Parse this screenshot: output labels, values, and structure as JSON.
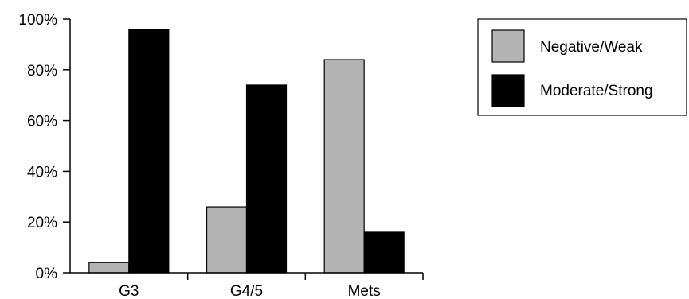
{
  "chart_data": {
    "type": "bar",
    "categories": [
      "G3",
      "G4/5",
      "Mets"
    ],
    "series": [
      {
        "name": "Negative/Weak",
        "values": [
          4,
          26,
          84
        ],
        "color": "#b3b3b3"
      },
      {
        "name": "Moderate/Strong",
        "values": [
          96,
          74,
          16
        ],
        "color": "#000000"
      }
    ],
    "y_ticks": [
      0,
      20,
      40,
      60,
      80,
      100
    ],
    "y_tick_labels": [
      "0%",
      "20%",
      "40%",
      "60%",
      "80%",
      "100%"
    ],
    "ylim": [
      0,
      100
    ],
    "grid": false,
    "legend_position": "top-right"
  }
}
